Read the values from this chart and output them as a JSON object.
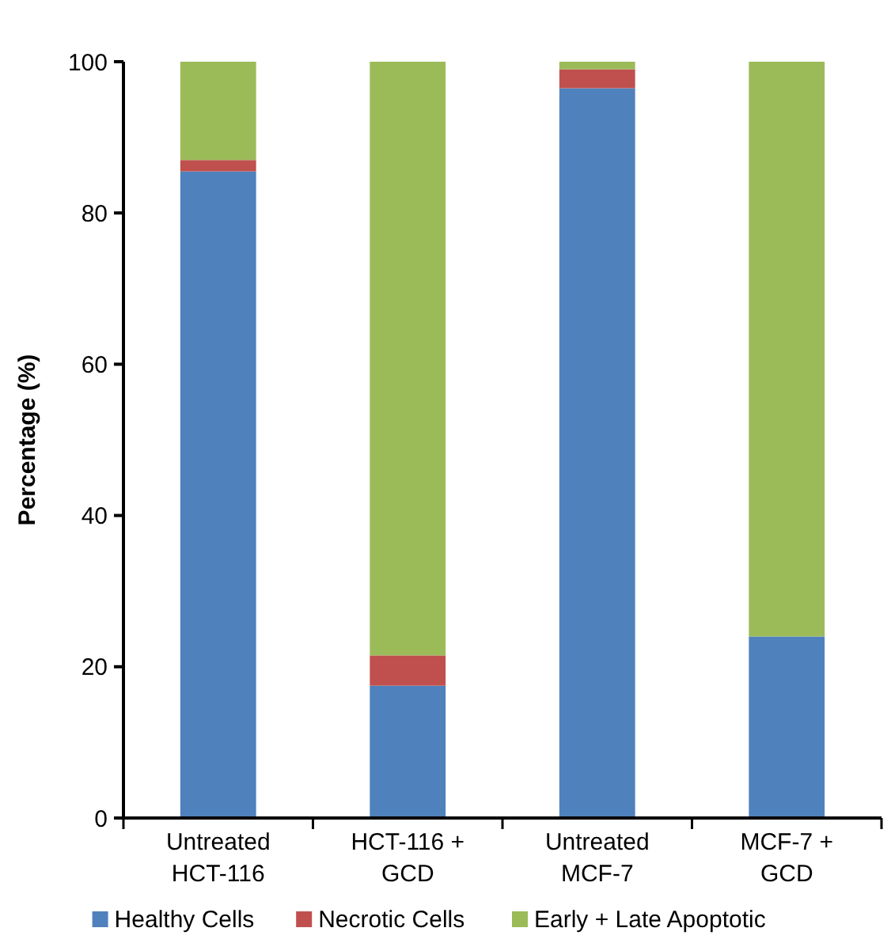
{
  "chart_data": {
    "type": "bar",
    "stacked": true,
    "ylabel": "Percentage (%)",
    "categories": [
      "Untreated\nHCT-116",
      "HCT-116 +\nGCD",
      "Untreated\nMCF-7",
      "MCF-7 +\nGCD"
    ],
    "series": [
      {
        "name": "Healthy Cells",
        "color": "#4f81bd",
        "values": [
          85.5,
          17.5,
          96.5,
          24
        ]
      },
      {
        "name": "Necrotic Cells",
        "color": "#c0504d",
        "values": [
          1.5,
          4,
          2.5,
          0
        ]
      },
      {
        "name": "Early + Late Apoptotic",
        "color": "#9bbb59",
        "values": [
          13,
          78.5,
          1,
          76
        ]
      }
    ],
    "ylim": [
      0,
      100
    ],
    "yticks": [
      0,
      20,
      40,
      60,
      80,
      100
    ],
    "legend": "bottom",
    "grid": false
  }
}
